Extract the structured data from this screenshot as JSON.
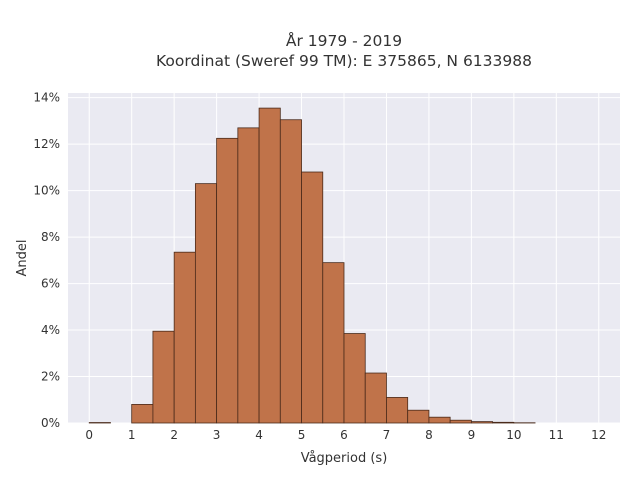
{
  "chart_data": {
    "type": "bar",
    "title_line1": "År 1979 - 2019",
    "title_line2": "Koordinat (Sweref 99 TM): E 375865, N 6133988",
    "xlabel": "Vågperiod (s)",
    "ylabel": "Andel",
    "xlim": [
      -0.5,
      12.5
    ],
    "ylim": [
      0,
      14.2
    ],
    "x_ticks": [
      0,
      1,
      2,
      3,
      4,
      5,
      6,
      7,
      8,
      9,
      10,
      11,
      12
    ],
    "y_ticks": [
      0,
      2,
      4,
      6,
      8,
      10,
      12,
      14
    ],
    "y_tick_labels": [
      "0%",
      "2%",
      "4%",
      "6%",
      "8%",
      "10%",
      "12%",
      "14%"
    ],
    "grid": true,
    "bin_width": 0.5,
    "bins": [
      {
        "x0": 0.0,
        "x1": 0.5,
        "value": 0.02
      },
      {
        "x0": 0.5,
        "x1": 1.0,
        "value": 0.0
      },
      {
        "x0": 1.0,
        "x1": 1.5,
        "value": 0.8
      },
      {
        "x0": 1.5,
        "x1": 2.0,
        "value": 3.95
      },
      {
        "x0": 2.0,
        "x1": 2.5,
        "value": 7.35
      },
      {
        "x0": 2.5,
        "x1": 3.0,
        "value": 10.3
      },
      {
        "x0": 3.0,
        "x1": 3.5,
        "value": 12.25
      },
      {
        "x0": 3.5,
        "x1": 4.0,
        "value": 12.7
      },
      {
        "x0": 4.0,
        "x1": 4.5,
        "value": 13.55
      },
      {
        "x0": 4.5,
        "x1": 5.0,
        "value": 13.05
      },
      {
        "x0": 5.0,
        "x1": 5.5,
        "value": 10.8
      },
      {
        "x0": 5.5,
        "x1": 6.0,
        "value": 6.9
      },
      {
        "x0": 6.0,
        "x1": 6.5,
        "value": 3.85
      },
      {
        "x0": 6.5,
        "x1": 7.0,
        "value": 2.15
      },
      {
        "x0": 7.0,
        "x1": 7.5,
        "value": 1.1
      },
      {
        "x0": 7.5,
        "x1": 8.0,
        "value": 0.55
      },
      {
        "x0": 8.0,
        "x1": 8.5,
        "value": 0.25
      },
      {
        "x0": 8.5,
        "x1": 9.0,
        "value": 0.12
      },
      {
        "x0": 9.0,
        "x1": 9.5,
        "value": 0.06
      },
      {
        "x0": 9.5,
        "x1": 10.0,
        "value": 0.03
      },
      {
        "x0": 10.0,
        "x1": 10.5,
        "value": 0.01
      }
    ],
    "colors": {
      "bar_fill": "#c0734a",
      "bar_edge": "#4a2a1a",
      "plot_bg": "#eaeaf2",
      "grid": "#ffffff"
    }
  }
}
